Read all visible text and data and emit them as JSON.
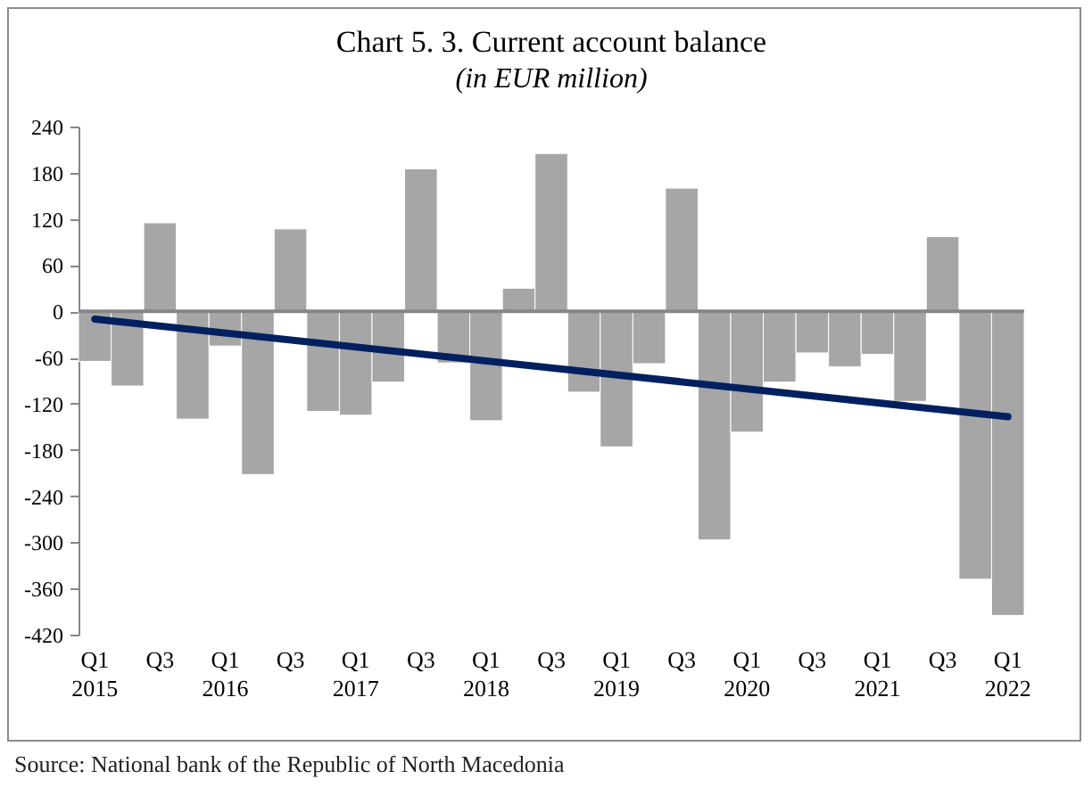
{
  "chart_data": {
    "type": "bar",
    "title": "Chart 5. 3. Current account balance",
    "subtitle": "(in EUR million)",
    "categories": [
      "Q1\n2015",
      null,
      "Q3",
      null,
      "Q1\n2016",
      null,
      "Q3",
      null,
      "Q1\n2017",
      null,
      "Q3",
      null,
      "Q1\n2018",
      null,
      "Q3",
      null,
      "Q1\n2019",
      null,
      "Q3",
      null,
      "Q1\n2020",
      null,
      "Q3",
      null,
      "Q1\n2021",
      null,
      "Q3",
      null,
      "Q1\n2022"
    ],
    "series": [
      {
        "color": "#a6a6a6",
        "values": [
          -65,
          -97,
          115,
          -140,
          -45,
          -212,
          107,
          -130,
          -135,
          -92,
          185,
          -67,
          -142,
          30,
          205,
          -105,
          -176,
          -68,
          160,
          -297,
          -157,
          -92,
          -54,
          -72,
          -56,
          -117,
          97,
          -348,
          -395
        ]
      },
      {
        "type": "line",
        "color": "#002060",
        "x": [
          "Q1\n2015",
          "Q1\n2022"
        ],
        "values": [
          -10,
          -137
        ]
      }
    ],
    "ylim": [
      -420,
      240
    ],
    "yticks": [
      -420,
      -360,
      -300,
      -240,
      -180,
      -120,
      -60,
      0,
      60,
      120,
      180,
      240
    ],
    "ref_lines": [
      {
        "axis": "y",
        "value": 0,
        "color": "#868686"
      }
    ],
    "annotations": [
      "Source: National bank of the Republic of North Macedonia"
    ]
  }
}
